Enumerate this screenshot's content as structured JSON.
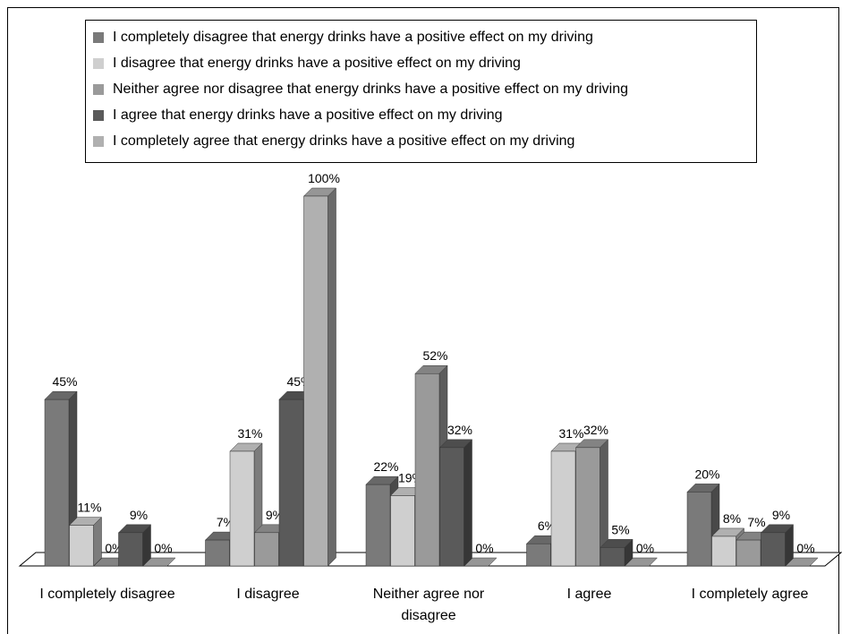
{
  "chart_data": {
    "type": "bar3d",
    "categories": [
      "I completely disagree",
      "I disagree",
      "Neither agree nor disagree",
      "I agree",
      "I completely agree"
    ],
    "series": [
      {
        "name": "I completely disagree that energy drinks have a positive effect on my driving",
        "color": "#7a7a7a",
        "values": [
          45,
          7,
          22,
          6,
          20
        ],
        "value_labels": [
          "45%",
          "7%",
          "22%",
          "6%",
          "20%"
        ]
      },
      {
        "name": "I disagree that energy drinks have a positive effect on my driving",
        "color": "#cfcfcf",
        "values": [
          11,
          31,
          19,
          31,
          8
        ],
        "value_labels": [
          "11%",
          "31%",
          "19%",
          "31%",
          "8%"
        ]
      },
      {
        "name": "Neither agree nor disagree that energy drinks have a positive effect on my driving",
        "color": "#9a9a9a",
        "values": [
          0,
          9,
          52,
          32,
          7
        ],
        "value_labels": [
          "0%",
          "9%",
          "52%",
          "32%",
          "7%"
        ]
      },
      {
        "name": "I agree that energy drinks have a positive effect on my driving",
        "color": "#5a5a5a",
        "values": [
          9,
          45,
          32,
          5,
          9
        ],
        "value_labels": [
          "9%",
          "45%",
          "32%",
          "5%",
          "9%"
        ]
      },
      {
        "name": "I completely agree that energy drinks have a positive effect on my driving",
        "color": "#b0b0b0",
        "values": [
          0,
          100,
          0,
          0,
          0
        ],
        "value_labels": [
          "0%",
          "100%",
          "0%",
          "0%",
          "0%"
        ]
      }
    ],
    "legend": "top"
  }
}
